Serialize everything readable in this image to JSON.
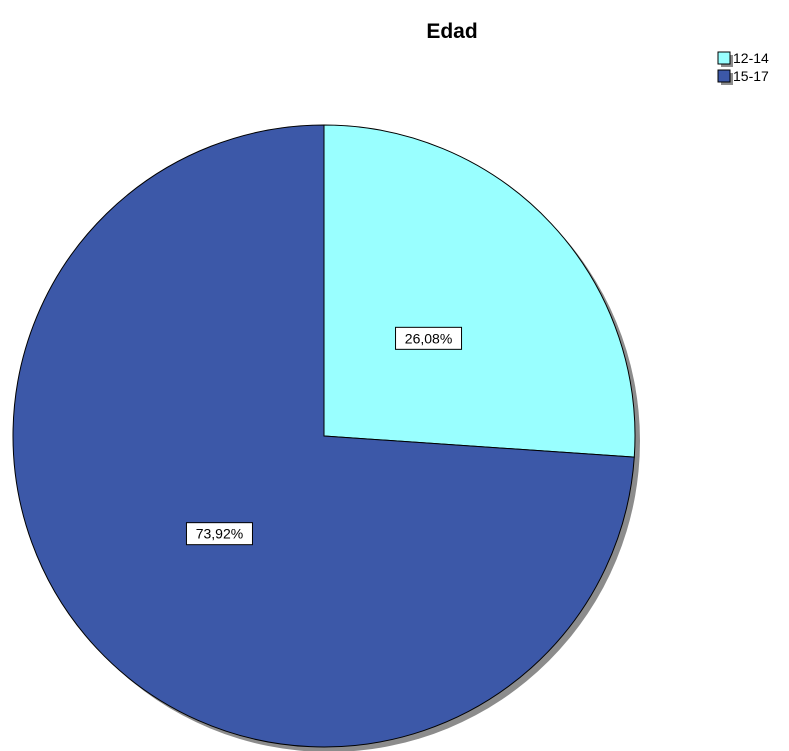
{
  "chart_data": {
    "type": "pie",
    "title": "Edad",
    "slices": [
      {
        "label": "12-14",
        "value": 26.08,
        "display": "26,08%",
        "color": "#99FFFF"
      },
      {
        "label": "15-17",
        "value": 73.92,
        "display": "73,92%",
        "color": "#3C58A8"
      }
    ],
    "start_angle_deg": 0,
    "direction": "clockwise",
    "legend_position": "top-right",
    "data_labels": true
  }
}
